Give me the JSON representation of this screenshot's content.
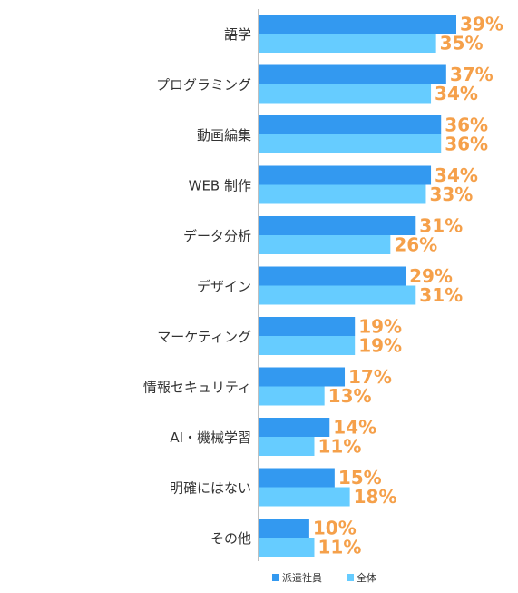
{
  "chart_data": {
    "type": "bar",
    "orientation": "horizontal",
    "categories": [
      "語学",
      "プログラミング",
      "動画編集",
      "WEB 制作",
      "データ分析",
      "デザイン",
      "マーケティング",
      "情報セキュリティ",
      "AI・機械学習",
      "明確にはない",
      "その他"
    ],
    "series": [
      {
        "name": "派遣社員",
        "values": [
          39,
          37,
          36,
          34,
          31,
          29,
          19,
          17,
          14,
          15,
          10
        ],
        "color": "#3399f0"
      },
      {
        "name": "全体",
        "values": [
          35,
          34,
          36,
          33,
          26,
          31,
          19,
          13,
          11,
          18,
          11
        ],
        "color": "#66ccff"
      }
    ],
    "value_labels": {
      "派遣社員": [
        "39%",
        "37%",
        "36%",
        "34%",
        "31%",
        "29%",
        "19%",
        "17%",
        "14%",
        "15%",
        "10%"
      ],
      "全体": [
        "35%",
        "34%",
        "36%",
        "33%",
        "26%",
        "31%",
        "19%",
        "13%",
        "11%",
        "18%",
        "11%"
      ]
    },
    "value_label_color": "#f5a04a",
    "xlim": [
      0,
      39
    ],
    "grid": false,
    "legend_position": "bottom"
  }
}
